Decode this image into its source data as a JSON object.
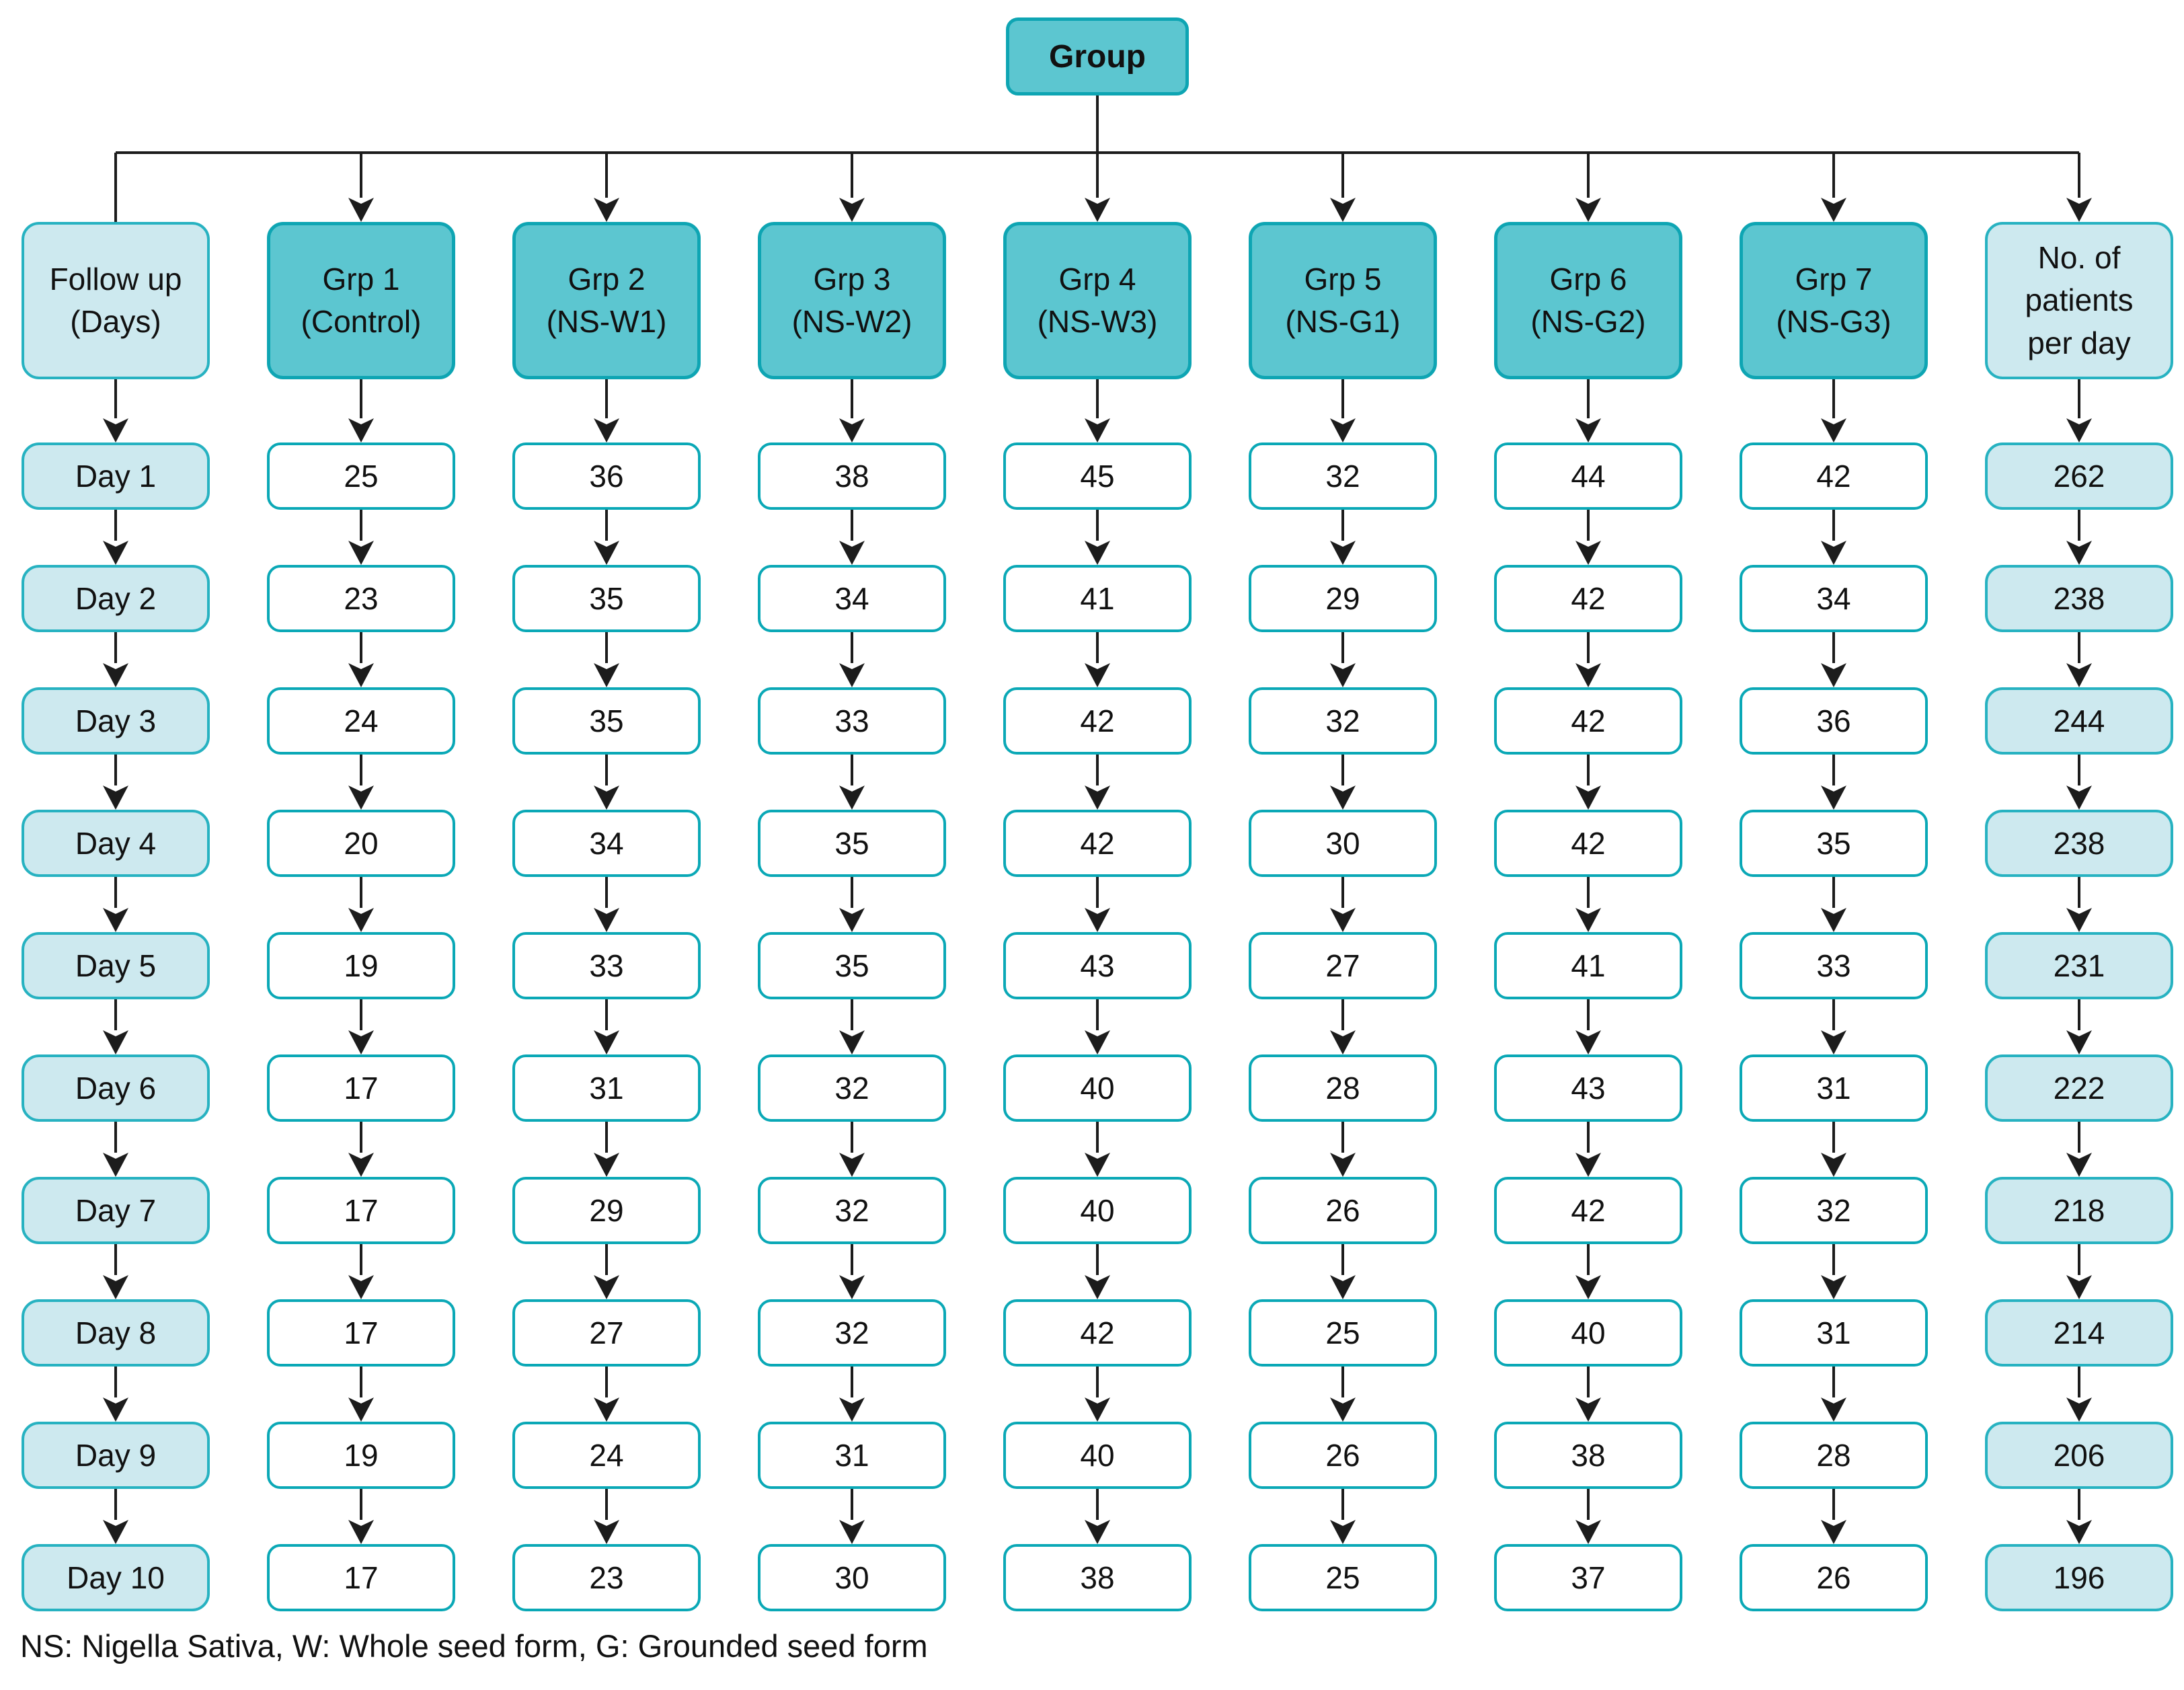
{
  "root": {
    "label": "Group"
  },
  "footnote": "NS: Nigella Sativa, W: Whole seed form, G: Grounded seed form",
  "colors": {
    "header_dark_fill": "#5cc6d0",
    "header_dark_border": "#0ea5b3",
    "light_fill": "#cde9ef",
    "light_border": "#27b2c1",
    "value_box_border": "#0aa8b6",
    "connector_line": "#1c1c1c"
  },
  "columns": [
    {
      "id": "follow-up-days",
      "header": "Follow up\n(Days)",
      "header_variant": "light",
      "cell_variant": "light",
      "top_arrowhead": false,
      "values": [
        "Day 1",
        "Day 2",
        "Day 3",
        "Day 4",
        "Day 5",
        "Day 6",
        "Day 7",
        "Day 8",
        "Day 9",
        "Day 10"
      ]
    },
    {
      "id": "grp-1-control",
      "header": "Grp 1\n(Control)",
      "header_variant": "dark",
      "cell_variant": "white",
      "top_arrowhead": true,
      "values": [
        "25",
        "23",
        "24",
        "20",
        "19",
        "17",
        "17",
        "17",
        "19",
        "17"
      ]
    },
    {
      "id": "grp-2-ns-w1",
      "header": "Grp 2\n(NS-W1)",
      "header_variant": "dark",
      "cell_variant": "white",
      "top_arrowhead": true,
      "values": [
        "36",
        "35",
        "35",
        "34",
        "33",
        "31",
        "29",
        "27",
        "24",
        "23"
      ]
    },
    {
      "id": "grp-3-ns-w2",
      "header": "Grp 3\n(NS-W2)",
      "header_variant": "dark",
      "cell_variant": "white",
      "top_arrowhead": true,
      "values": [
        "38",
        "34",
        "33",
        "35",
        "35",
        "32",
        "32",
        "32",
        "31",
        "30"
      ]
    },
    {
      "id": "grp-4-ns-w3",
      "header": "Grp 4\n(NS-W3)",
      "header_variant": "dark",
      "cell_variant": "white",
      "top_arrowhead": true,
      "values": [
        "45",
        "41",
        "42",
        "42",
        "43",
        "40",
        "40",
        "42",
        "40",
        "38"
      ]
    },
    {
      "id": "grp-5-ns-g1",
      "header": "Grp 5\n(NS-G1)",
      "header_variant": "dark",
      "cell_variant": "white",
      "top_arrowhead": true,
      "values": [
        "32",
        "29",
        "32",
        "30",
        "27",
        "28",
        "26",
        "25",
        "26",
        "25"
      ]
    },
    {
      "id": "grp-6-ns-g2",
      "header": "Grp 6\n(NS-G2)",
      "header_variant": "dark",
      "cell_variant": "white",
      "top_arrowhead": true,
      "values": [
        "44",
        "42",
        "42",
        "42",
        "41",
        "43",
        "42",
        "40",
        "38",
        "37"
      ]
    },
    {
      "id": "grp-7-ns-g3",
      "header": "Grp 7\n(NS-G3)",
      "header_variant": "dark",
      "cell_variant": "white",
      "top_arrowhead": true,
      "values": [
        "42",
        "34",
        "36",
        "35",
        "33",
        "31",
        "32",
        "31",
        "28",
        "26"
      ]
    },
    {
      "id": "patients-per-day",
      "header": "No. of\npatients\nper day",
      "header_variant": "light",
      "cell_variant": "light",
      "top_arrowhead": true,
      "values": [
        "262",
        "238",
        "244",
        "238",
        "231",
        "222",
        "218",
        "214",
        "206",
        "196"
      ]
    }
  ]
}
